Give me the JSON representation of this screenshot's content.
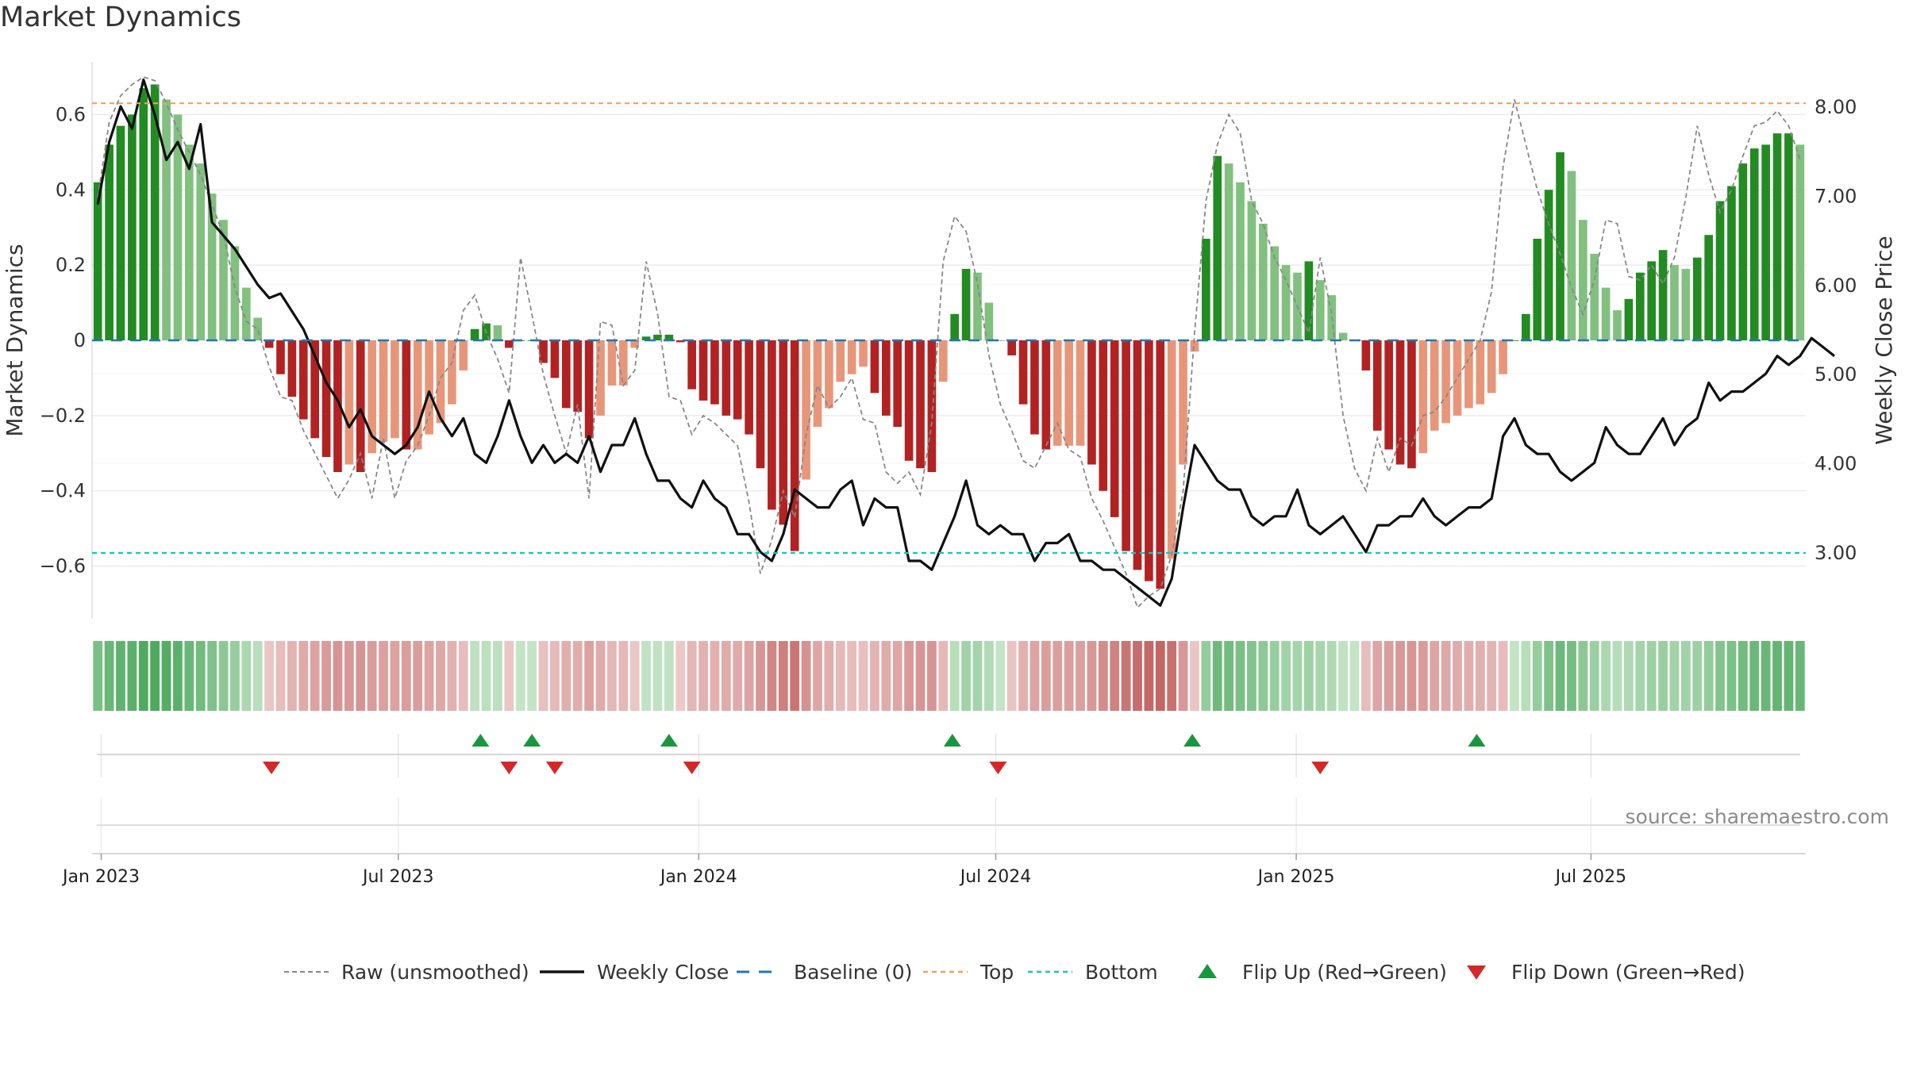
{
  "title": "Market Dynamics",
  "source": "source: sharemaestro.com",
  "colors": {
    "green_strong": "#228b22",
    "green_light": "#81c07f",
    "red_strong": "#b22222",
    "red_light": "#e8967a",
    "close_line": "#111111",
    "raw_line": "#888888",
    "baseline": "#1f77b4",
    "top_line": "#f0a060",
    "bottom_line": "#20c0c0",
    "flip_up": "#1a9641",
    "flip_down": "#d62728"
  },
  "legend": [
    {
      "key": "raw",
      "label": "Raw (unsmoothed)"
    },
    {
      "key": "close",
      "label": "Weekly Close"
    },
    {
      "key": "baseline",
      "label": "Baseline (0)"
    },
    {
      "key": "top",
      "label": "Top"
    },
    {
      "key": "bottom",
      "label": "Bottom"
    },
    {
      "key": "flipup",
      "label": "Flip Up (Red→Green)"
    },
    {
      "key": "flipdown",
      "label": "Flip Down (Green→Red)"
    }
  ],
  "chart_data": {
    "type": "bar",
    "title": "Market Dynamics",
    "ylabel": "Market Dynamics",
    "y2label": "Weekly Close Price",
    "ylim": [
      -0.74,
      0.74
    ],
    "y2lim": [
      2.25,
      8.5
    ],
    "yticks": [
      {
        "v": 0.6,
        "label": "0.6"
      },
      {
        "v": 0.4,
        "label": "0.4"
      },
      {
        "v": 0.2,
        "label": "0.2"
      },
      {
        "v": 0,
        "label": "0"
      },
      {
        "v": -0.2,
        "label": "−0.2"
      },
      {
        "v": -0.4,
        "label": "−0.4"
      },
      {
        "v": -0.6,
        "label": "−0.6"
      }
    ],
    "y2ticks": [
      {
        "v": 8,
        "label": "8.00"
      },
      {
        "v": 7,
        "label": "7.00"
      },
      {
        "v": 6,
        "label": "6.00"
      },
      {
        "v": 5,
        "label": "5.00"
      },
      {
        "v": 4,
        "label": "4.00"
      },
      {
        "v": 3,
        "label": "3.00"
      }
    ],
    "xticks": [
      {
        "week": 0.3,
        "label": "Jan 2023"
      },
      {
        "week": 26.3,
        "label": "Jul 2023"
      },
      {
        "week": 52.6,
        "label": "Jan 2024"
      },
      {
        "week": 78.6,
        "label": "Jul 2024"
      },
      {
        "week": 104.9,
        "label": "Jan 2025"
      },
      {
        "week": 130.7,
        "label": "Jul 2025"
      }
    ],
    "x_start": "Jan 2023",
    "top": 0.63,
    "bottom": -0.565,
    "baseline": 0,
    "grid": true,
    "legend_position": "bottom",
    "momentum": [
      0.42,
      0.52,
      0.57,
      0.6,
      0.67,
      0.68,
      0.64,
      0.6,
      0.52,
      0.47,
      0.39,
      0.32,
      0.25,
      0.14,
      0.06,
      -0.02,
      -0.09,
      -0.15,
      -0.21,
      -0.26,
      -0.31,
      -0.35,
      -0.33,
      -0.35,
      -0.3,
      -0.27,
      -0.26,
      -0.29,
      -0.29,
      -0.25,
      -0.22,
      -0.17,
      -0.08,
      0.03,
      0.045,
      0.04,
      -0.02,
      0.0,
      0.0,
      -0.06,
      -0.1,
      -0.18,
      -0.19,
      -0.26,
      -0.2,
      -0.12,
      -0.12,
      -0.02,
      0.01,
      0.015,
      0.015,
      -0.005,
      -0.13,
      -0.16,
      -0.17,
      -0.2,
      -0.21,
      -0.25,
      -0.34,
      -0.45,
      -0.49,
      -0.56,
      -0.37,
      -0.23,
      -0.18,
      -0.11,
      -0.09,
      -0.07,
      -0.14,
      -0.2,
      -0.23,
      -0.32,
      -0.34,
      -0.35,
      -0.11,
      0.07,
      0.19,
      0.18,
      0.1,
      0.0,
      -0.04,
      -0.17,
      -0.25,
      -0.29,
      -0.28,
      -0.28,
      -0.28,
      -0.33,
      -0.4,
      -0.47,
      -0.56,
      -0.61,
      -0.64,
      -0.66,
      -0.58,
      -0.33,
      -0.03,
      0.27,
      0.49,
      0.47,
      0.42,
      0.37,
      0.31,
      0.25,
      0.2,
      0.18,
      0.21,
      0.16,
      0.12,
      0.02,
      0.0,
      -0.08,
      -0.24,
      -0.29,
      -0.33,
      -0.34,
      -0.3,
      -0.24,
      -0.22,
      -0.2,
      -0.18,
      -0.17,
      -0.14,
      -0.09,
      0.0,
      0.07,
      0.27,
      0.4,
      0.5,
      0.45,
      0.32,
      0.23,
      0.14,
      0.08,
      0.11,
      0.18,
      0.21,
      0.24,
      0.2,
      0.19,
      0.22,
      0.28,
      0.37,
      0.41,
      0.47,
      0.51,
      0.52,
      0.55,
      0.55,
      0.52
    ],
    "raw": [
      0.38,
      0.58,
      0.65,
      0.68,
      0.7,
      0.69,
      0.63,
      0.56,
      0.5,
      0.44,
      0.36,
      0.28,
      0.14,
      0.05,
      0.03,
      -0.07,
      -0.15,
      -0.16,
      -0.24,
      -0.3,
      -0.36,
      -0.42,
      -0.37,
      -0.3,
      -0.42,
      -0.26,
      -0.42,
      -0.32,
      -0.28,
      -0.2,
      -0.1,
      -0.06,
      0.08,
      0.12,
      0.02,
      -0.05,
      -0.14,
      0.22,
      0.07,
      -0.09,
      -0.2,
      -0.3,
      -0.17,
      -0.42,
      0.05,
      0.04,
      -0.12,
      -0.08,
      0.21,
      0.07,
      -0.15,
      -0.16,
      -0.25,
      -0.2,
      -0.22,
      -0.25,
      -0.28,
      -0.43,
      -0.62,
      -0.53,
      -0.4,
      -0.47,
      -0.25,
      -0.12,
      -0.18,
      -0.15,
      -0.1,
      -0.21,
      -0.22,
      -0.35,
      -0.38,
      -0.35,
      -0.41,
      -0.22,
      0.21,
      0.33,
      0.29,
      0.15,
      -0.04,
      -0.17,
      -0.24,
      -0.32,
      -0.34,
      -0.28,
      -0.22,
      -0.29,
      -0.31,
      -0.42,
      -0.48,
      -0.55,
      -0.62,
      -0.71,
      -0.68,
      -0.66,
      -0.57,
      -0.4,
      0.02,
      0.37,
      0.52,
      0.6,
      0.55,
      0.37,
      0.31,
      0.22,
      0.16,
      0.09,
      0.02,
      0.22,
      0.07,
      -0.2,
      -0.34,
      -0.4,
      -0.26,
      -0.35,
      -0.26,
      -0.28,
      -0.2,
      -0.19,
      -0.15,
      -0.1,
      -0.05,
      0.0,
      0.13,
      0.46,
      0.64,
      0.52,
      0.4,
      0.31,
      0.23,
      0.14,
      0.07,
      0.16,
      0.32,
      0.31,
      0.17,
      0.16,
      0.2,
      0.15,
      0.22,
      0.38,
      0.57,
      0.44,
      0.34,
      0.4,
      0.49,
      0.57,
      0.58,
      0.61,
      0.57,
      0.48
    ],
    "close": [
      6.9,
      7.6,
      8.0,
      7.75,
      8.3,
      7.9,
      7.4,
      7.6,
      7.3,
      7.8,
      6.7,
      6.55,
      6.4,
      6.2,
      6.0,
      5.85,
      5.9,
      5.7,
      5.5,
      5.2,
      4.9,
      4.7,
      4.4,
      4.6,
      4.3,
      4.2,
      4.1,
      4.2,
      4.4,
      4.8,
      4.5,
      4.3,
      4.5,
      4.1,
      4.0,
      4.3,
      4.7,
      4.3,
      4.0,
      4.2,
      4.0,
      4.1,
      4.0,
      4.3,
      3.9,
      4.2,
      4.2,
      4.5,
      4.1,
      3.8,
      3.8,
      3.6,
      3.5,
      3.8,
      3.6,
      3.5,
      3.2,
      3.2,
      3.0,
      2.9,
      3.2,
      3.7,
      3.6,
      3.5,
      3.5,
      3.7,
      3.8,
      3.3,
      3.6,
      3.5,
      3.5,
      2.9,
      2.9,
      2.8,
      3.1,
      3.4,
      3.8,
      3.3,
      3.2,
      3.3,
      3.2,
      3.2,
      2.9,
      3.1,
      3.1,
      3.2,
      2.9,
      2.9,
      2.8,
      2.8,
      2.7,
      2.6,
      2.5,
      2.4,
      2.7,
      3.5,
      4.2,
      4.0,
      3.8,
      3.7,
      3.7,
      3.4,
      3.3,
      3.4,
      3.4,
      3.7,
      3.3,
      3.2,
      3.3,
      3.4,
      3.2,
      3.0,
      3.3,
      3.3,
      3.4,
      3.4,
      3.6,
      3.4,
      3.3,
      3.4,
      3.5,
      3.5,
      3.6,
      4.3,
      4.5,
      4.2,
      4.1,
      4.1,
      3.9,
      3.8,
      3.9,
      4.0,
      4.4,
      4.2,
      4.1,
      4.1,
      4.3,
      4.5,
      4.2,
      4.4,
      4.5,
      4.9,
      4.7,
      4.8,
      4.8,
      4.9,
      5.0,
      5.2,
      5.1,
      5.2,
      5.4,
      5.3,
      5.2
    ],
    "flip_up_weeks": [
      33.5,
      38,
      50,
      74.8,
      95.8,
      120.7
    ],
    "flip_down_weeks": [
      15.2,
      36,
      40,
      52,
      78.8,
      107
    ]
  }
}
